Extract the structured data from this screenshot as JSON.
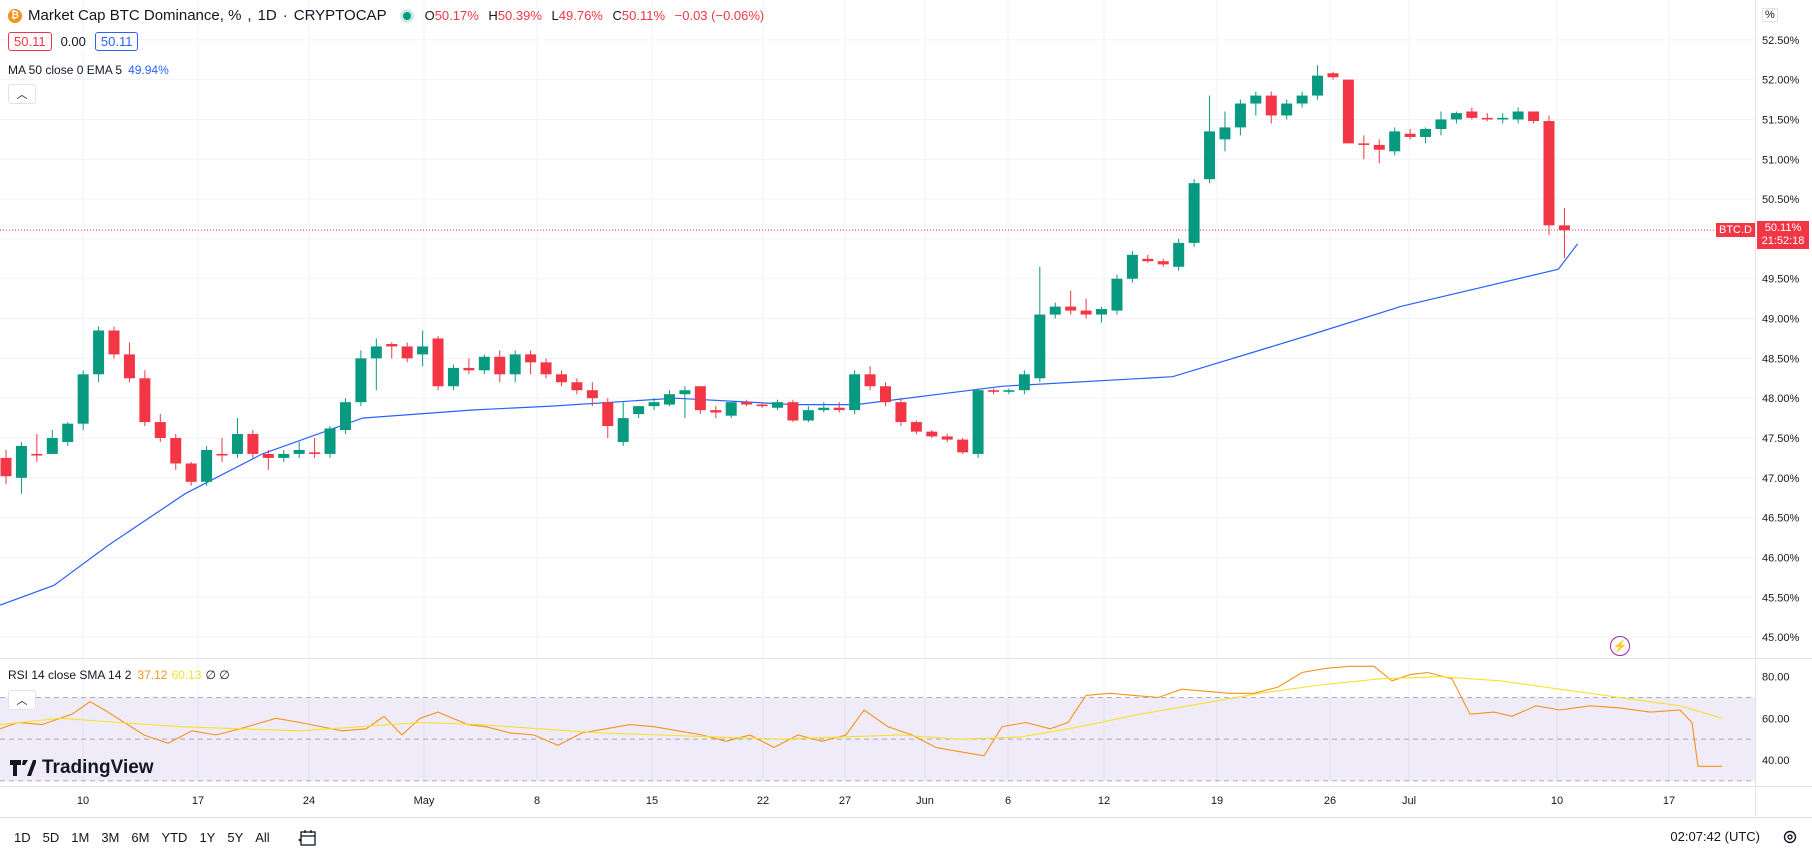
{
  "header": {
    "title": "Market Cap BTC Dominance, %",
    "separator": "·",
    "interval": "1D",
    "exchange": "CRYPTOCAP",
    "coin_icon": "bitcoin-icon",
    "status_color": "#089981",
    "ohlc": {
      "o_label": "O",
      "o_value": "50.17%",
      "h_label": "H",
      "h_value": "50.39%",
      "l_label": "L",
      "l_value": "49.76%",
      "c_label": "C",
      "c_value": "50.11%",
      "change": "−0.03 (−0.06%)"
    }
  },
  "badges": {
    "bid": "50.11",
    "spread": "0.00",
    "ask": "50.11"
  },
  "ma_legend": {
    "label": "MA 50 close 0 EMA 5",
    "value": "49.94%"
  },
  "rsi_legend": {
    "label": "RSI 14 close SMA 14 2",
    "rsi": "37.12",
    "sma": "60.13",
    "extra": "∅ ∅"
  },
  "axis": {
    "unit_label": "%"
  },
  "price_tag": {
    "symbol": "BTC.D",
    "price": "50.11%",
    "countdown": "21:52:18"
  },
  "brand": {
    "name": "TradingView"
  },
  "toolbar": {
    "timeframes": [
      "1D",
      "5D",
      "1M",
      "3M",
      "6M",
      "YTD",
      "1Y",
      "5Y",
      "All"
    ],
    "clock": "02:07:42 (UTC)"
  },
  "colors": {
    "up": "#089981",
    "down": "#f23645",
    "ma": "#2962ff",
    "rsi": "#f7931a",
    "rsi_sma": "#f7e12a",
    "rsi_band": "#7e57c2"
  },
  "chart_data": {
    "type": "candlestick",
    "title": "Market Cap BTC Dominance, %",
    "y_unit": "%",
    "ylim": [
      44.75,
      53.0
    ],
    "y_ticks": [
      "45.00%",
      "45.50%",
      "46.00%",
      "46.50%",
      "47.00%",
      "47.50%",
      "48.00%",
      "48.50%",
      "49.00%",
      "49.50%",
      "50.00%",
      "50.50%",
      "51.00%",
      "51.50%",
      "52.00%",
      "52.50%"
    ],
    "x_ticks": [
      "10",
      "17",
      "24",
      "May",
      "8",
      "15",
      "22",
      "27",
      "Jun",
      "6",
      "12",
      "19",
      "26",
      "Jul",
      "10",
      "17"
    ],
    "grid": true,
    "last_price": 50.11,
    "candles": [
      [
        47.25,
        47.35,
        46.92,
        47.02
      ],
      [
        47.0,
        47.45,
        46.8,
        47.4
      ],
      [
        47.3,
        47.55,
        47.2,
        47.28
      ],
      [
        47.3,
        47.6,
        47.3,
        47.5
      ],
      [
        47.45,
        47.7,
        47.4,
        47.68
      ],
      [
        47.68,
        48.35,
        47.6,
        48.3
      ],
      [
        48.3,
        48.9,
        48.2,
        48.85
      ],
      [
        48.85,
        48.9,
        48.5,
        48.55
      ],
      [
        48.55,
        48.7,
        48.2,
        48.25
      ],
      [
        48.25,
        48.35,
        47.65,
        47.7
      ],
      [
        47.7,
        47.8,
        47.45,
        47.5
      ],
      [
        47.5,
        47.55,
        47.1,
        47.18
      ],
      [
        47.18,
        47.2,
        46.9,
        46.95
      ],
      [
        46.95,
        47.4,
        46.9,
        47.35
      ],
      [
        47.3,
        47.5,
        47.2,
        47.28
      ],
      [
        47.3,
        47.75,
        47.25,
        47.55
      ],
      [
        47.55,
        47.6,
        47.25,
        47.3
      ],
      [
        47.3,
        47.35,
        47.1,
        47.25
      ],
      [
        47.25,
        47.35,
        47.2,
        47.3
      ],
      [
        47.3,
        47.45,
        47.25,
        47.35
      ],
      [
        47.32,
        47.5,
        47.25,
        47.3
      ],
      [
        47.3,
        47.65,
        47.25,
        47.62
      ],
      [
        47.6,
        48.0,
        47.55,
        47.95
      ],
      [
        47.95,
        48.6,
        47.9,
        48.5
      ],
      [
        48.5,
        48.75,
        48.1,
        48.65
      ],
      [
        48.68,
        48.7,
        48.5,
        48.65
      ],
      [
        48.65,
        48.7,
        48.45,
        48.5
      ],
      [
        48.55,
        48.85,
        48.4,
        48.65
      ],
      [
        48.75,
        48.78,
        48.1,
        48.15
      ],
      [
        48.15,
        48.42,
        48.1,
        48.38
      ],
      [
        48.38,
        48.5,
        48.3,
        48.35
      ],
      [
        48.35,
        48.55,
        48.3,
        48.52
      ],
      [
        48.52,
        48.6,
        48.2,
        48.3
      ],
      [
        48.3,
        48.6,
        48.2,
        48.55
      ],
      [
        48.55,
        48.6,
        48.3,
        48.45
      ],
      [
        48.45,
        48.5,
        48.25,
        48.3
      ],
      [
        48.3,
        48.35,
        48.15,
        48.2
      ],
      [
        48.2,
        48.25,
        48.05,
        48.1
      ],
      [
        48.1,
        48.2,
        47.9,
        48.0
      ],
      [
        47.95,
        48.0,
        47.5,
        47.65
      ],
      [
        47.45,
        47.95,
        47.4,
        47.75
      ],
      [
        47.8,
        47.9,
        47.75,
        47.9
      ],
      [
        47.9,
        48.0,
        47.85,
        47.95
      ],
      [
        47.92,
        48.1,
        47.9,
        48.05
      ],
      [
        48.05,
        48.15,
        47.75,
        48.1
      ],
      [
        48.15,
        48.15,
        47.8,
        47.85
      ],
      [
        47.85,
        47.9,
        47.75,
        47.82
      ],
      [
        47.78,
        47.95,
        47.75,
        47.95
      ],
      [
        47.95,
        47.98,
        47.9,
        47.92
      ],
      [
        47.92,
        47.95,
        47.88,
        47.9
      ],
      [
        47.88,
        47.98,
        47.85,
        47.95
      ],
      [
        47.95,
        47.98,
        47.7,
        47.72
      ],
      [
        47.72,
        47.9,
        47.7,
        47.85
      ],
      [
        47.85,
        47.95,
        47.82,
        47.88
      ],
      [
        47.88,
        47.95,
        47.82,
        47.85
      ],
      [
        47.85,
        48.35,
        47.8,
        48.3
      ],
      [
        48.3,
        48.4,
        48.1,
        48.15
      ],
      [
        48.15,
        48.2,
        47.9,
        47.95
      ],
      [
        47.95,
        48.0,
        47.65,
        47.7
      ],
      [
        47.7,
        47.72,
        47.55,
        47.58
      ],
      [
        47.58,
        47.6,
        47.5,
        47.52
      ],
      [
        47.52,
        47.55,
        47.45,
        47.48
      ],
      [
        47.48,
        47.5,
        47.3,
        47.32
      ],
      [
        47.3,
        48.12,
        47.25,
        48.1
      ],
      [
        48.1,
        48.12,
        48.05,
        48.08
      ],
      [
        48.08,
        48.12,
        48.05,
        48.1
      ],
      [
        48.1,
        48.35,
        48.05,
        48.3
      ],
      [
        48.25,
        49.65,
        48.2,
        49.05
      ],
      [
        49.05,
        49.2,
        49.0,
        49.15
      ],
      [
        49.15,
        49.35,
        49.05,
        49.1
      ],
      [
        49.1,
        49.25,
        49.0,
        49.05
      ],
      [
        49.05,
        49.15,
        48.95,
        49.12
      ],
      [
        49.1,
        49.55,
        49.05,
        49.5
      ],
      [
        49.5,
        49.85,
        49.45,
        49.8
      ],
      [
        49.75,
        49.8,
        49.7,
        49.72
      ],
      [
        49.72,
        49.75,
        49.65,
        49.68
      ],
      [
        49.65,
        50.0,
        49.6,
        49.95
      ],
      [
        49.95,
        50.75,
        49.9,
        50.7
      ],
      [
        50.75,
        51.8,
        50.7,
        51.35
      ],
      [
        51.25,
        51.6,
        51.1,
        51.4
      ],
      [
        51.4,
        51.75,
        51.3,
        51.7
      ],
      [
        51.7,
        51.85,
        51.55,
        51.8
      ],
      [
        51.8,
        51.85,
        51.45,
        51.55
      ],
      [
        51.55,
        51.75,
        51.5,
        51.7
      ],
      [
        51.7,
        51.85,
        51.65,
        51.8
      ],
      [
        51.8,
        52.18,
        51.75,
        52.05
      ],
      [
        52.08,
        52.1,
        52.0,
        52.03
      ],
      [
        52.0,
        52.0,
        51.2,
        51.2
      ],
      [
        51.2,
        51.3,
        51.0,
        51.18
      ],
      [
        51.18,
        51.25,
        50.95,
        51.12
      ],
      [
        51.1,
        51.4,
        51.05,
        51.35
      ],
      [
        51.32,
        51.38,
        51.25,
        51.28
      ],
      [
        51.28,
        51.4,
        51.2,
        51.38
      ],
      [
        51.38,
        51.6,
        51.3,
        51.5
      ],
      [
        51.5,
        51.6,
        51.45,
        51.58
      ],
      [
        51.6,
        51.65,
        51.5,
        51.52
      ],
      [
        51.52,
        51.58,
        51.48,
        51.5
      ],
      [
        51.5,
        51.58,
        51.45,
        51.52
      ],
      [
        51.5,
        51.65,
        51.45,
        51.6
      ],
      [
        51.6,
        51.6,
        51.45,
        51.48
      ],
      [
        51.48,
        51.55,
        50.05,
        50.17
      ],
      [
        50.17,
        50.39,
        49.76,
        50.11
      ]
    ],
    "ma": [
      [
        0,
        45.4
      ],
      [
        14,
        45.65
      ],
      [
        28,
        46.15
      ],
      [
        48,
        46.8
      ],
      [
        68,
        47.3
      ],
      [
        94,
        47.75
      ],
      [
        122,
        47.85
      ],
      [
        143,
        47.9
      ],
      [
        175,
        48.0
      ],
      [
        206,
        47.92
      ],
      [
        222,
        47.92
      ],
      [
        260,
        48.15
      ],
      [
        304,
        48.27
      ],
      [
        340,
        48.8
      ],
      [
        363,
        49.15
      ],
      [
        404,
        49.62
      ],
      [
        409,
        49.94
      ]
    ],
    "rsi": {
      "ylim": [
        28,
        88
      ],
      "y_ticks": [
        "40.00",
        "60.00",
        "80.00"
      ],
      "overbought": 70,
      "oversold": 30,
      "middle": 50,
      "values": [
        [
          0,
          55
        ],
        [
          6,
          58
        ],
        [
          14,
          57
        ],
        [
          24,
          62
        ],
        [
          30,
          68
        ],
        [
          36,
          63
        ],
        [
          48,
          52
        ],
        [
          56,
          48
        ],
        [
          64,
          54
        ],
        [
          72,
          52
        ],
        [
          80,
          55
        ],
        [
          92,
          60
        ],
        [
          100,
          58
        ],
        [
          114,
          54
        ],
        [
          122,
          55
        ],
        [
          128,
          61
        ],
        [
          134,
          52
        ],
        [
          140,
          60
        ],
        [
          146,
          63
        ],
        [
          156,
          57
        ],
        [
          162,
          56
        ],
        [
          170,
          53
        ],
        [
          178,
          52
        ],
        [
          186,
          47
        ],
        [
          194,
          53
        ],
        [
          202,
          55
        ],
        [
          210,
          57
        ],
        [
          218,
          56
        ],
        [
          226,
          54
        ],
        [
          234,
          52
        ],
        [
          242,
          49
        ],
        [
          250,
          52
        ],
        [
          258,
          46
        ],
        [
          266,
          52
        ],
        [
          274,
          49
        ],
        [
          282,
          52
        ],
        [
          288,
          64
        ],
        [
          296,
          56
        ],
        [
          304,
          52
        ],
        [
          312,
          46
        ],
        [
          320,
          44
        ],
        [
          328,
          42
        ],
        [
          334,
          56
        ],
        [
          342,
          58
        ],
        [
          350,
          55
        ],
        [
          356,
          58
        ],
        [
          362,
          71
        ],
        [
          370,
          72
        ],
        [
          378,
          71
        ],
        [
          386,
          70
        ],
        [
          394,
          74
        ],
        [
          402,
          73
        ],
        [
          410,
          72
        ],
        [
          418,
          72
        ],
        [
          426,
          75
        ],
        [
          434,
          82
        ],
        [
          442,
          84
        ],
        [
          450,
          85
        ],
        [
          458,
          85
        ],
        [
          464,
          78
        ],
        [
          470,
          81
        ],
        [
          476,
          82
        ],
        [
          484,
          79
        ],
        [
          490,
          62
        ],
        [
          498,
          63
        ],
        [
          504,
          61
        ],
        [
          512,
          66
        ],
        [
          520,
          64
        ],
        [
          530,
          66
        ],
        [
          540,
          65
        ],
        [
          550,
          63
        ],
        [
          560,
          64
        ],
        [
          564,
          58
        ],
        [
          566,
          37
        ],
        [
          574,
          37
        ]
      ],
      "sma": [
        [
          0,
          57
        ],
        [
          20,
          60
        ],
        [
          40,
          58
        ],
        [
          60,
          56
        ],
        [
          80,
          55
        ],
        [
          100,
          54
        ],
        [
          120,
          56
        ],
        [
          140,
          58
        ],
        [
          160,
          57
        ],
        [
          180,
          55
        ],
        [
          200,
          53
        ],
        [
          220,
          52
        ],
        [
          240,
          51
        ],
        [
          260,
          50
        ],
        [
          280,
          51
        ],
        [
          300,
          52
        ],
        [
          320,
          50
        ],
        [
          340,
          51
        ],
        [
          360,
          56
        ],
        [
          380,
          62
        ],
        [
          400,
          67
        ],
        [
          420,
          72
        ],
        [
          440,
          76
        ],
        [
          460,
          79
        ],
        [
          480,
          80
        ],
        [
          500,
          78
        ],
        [
          520,
          74
        ],
        [
          540,
          70
        ],
        [
          560,
          66
        ],
        [
          574,
          60
        ]
      ]
    }
  }
}
